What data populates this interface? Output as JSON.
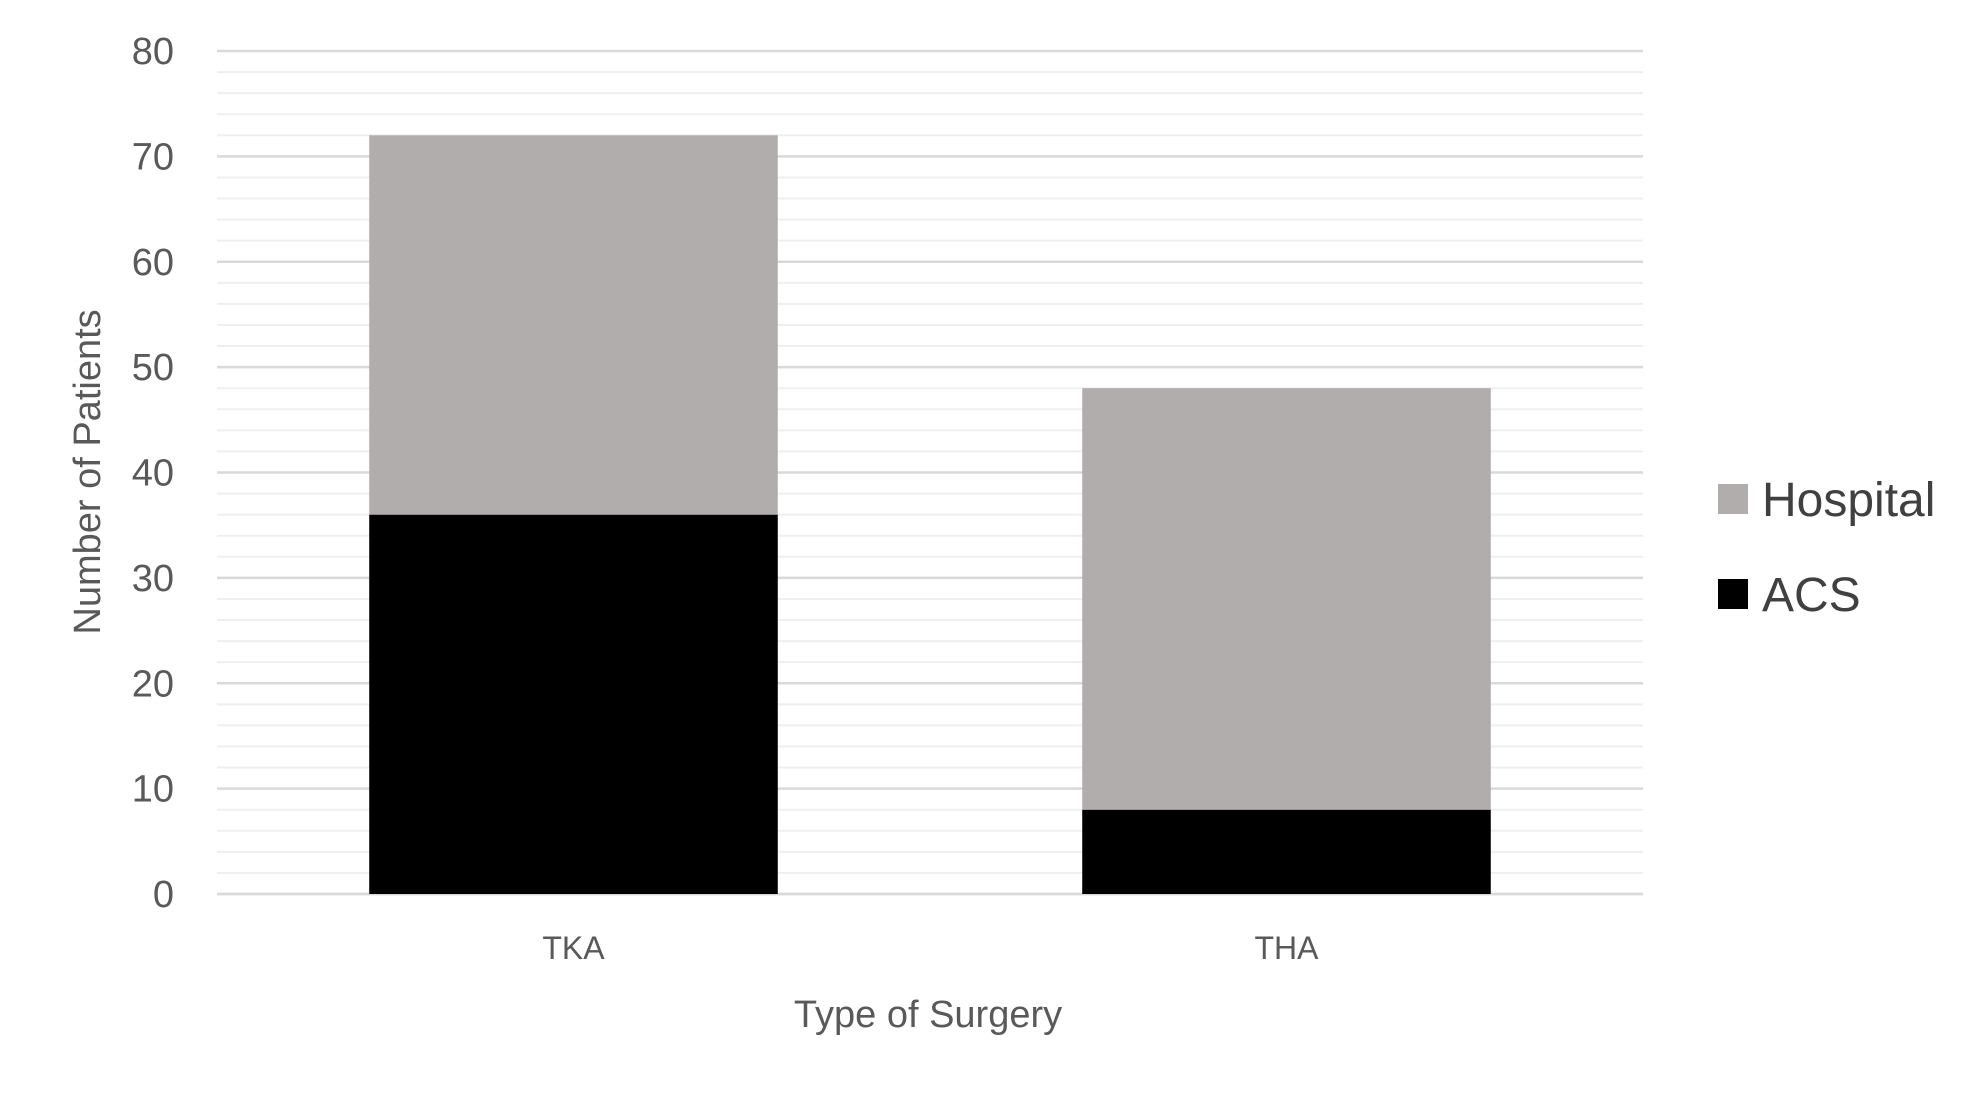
{
  "chart_data": {
    "type": "bar",
    "stacked": true,
    "categories": [
      "TKA",
      "THA"
    ],
    "series": [
      {
        "name": "ACS",
        "values": [
          36,
          8
        ],
        "color": "#000000"
      },
      {
        "name": "Hospital",
        "values": [
          36,
          40
        ],
        "color": "#b0adac"
      }
    ],
    "title": "",
    "xlabel": "Type of Surgery",
    "ylabel": "Number of Patients",
    "ylim": [
      0,
      80
    ],
    "yticks": [
      0,
      10,
      20,
      30,
      40,
      50,
      60,
      70,
      80
    ],
    "minor_gridlines": true,
    "grid": true,
    "legend": {
      "position": "right",
      "order": [
        "Hospital",
        "ACS"
      ]
    }
  }
}
